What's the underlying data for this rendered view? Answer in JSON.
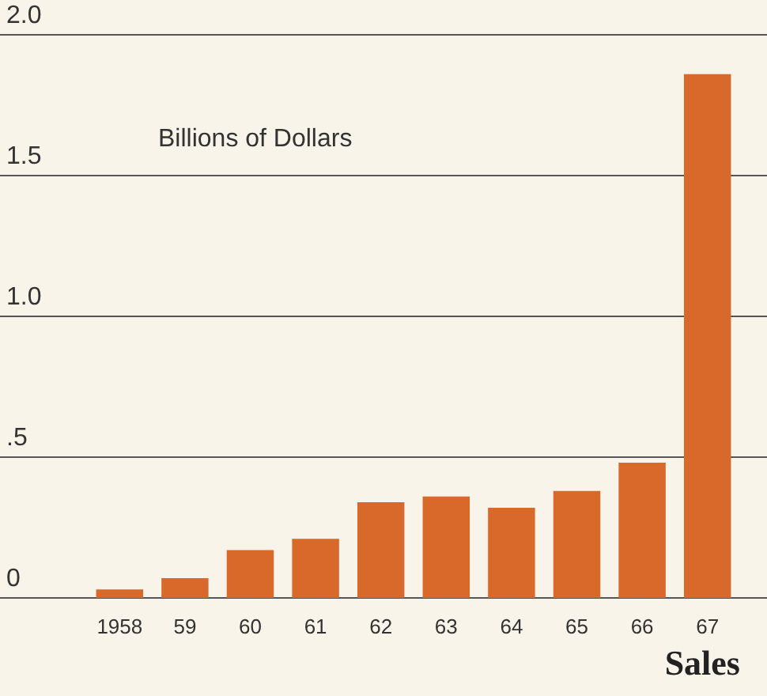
{
  "chart_data": {
    "type": "bar",
    "title": "Sales",
    "annotations": [
      "Billions of Dollars"
    ],
    "categories": [
      "1958",
      "59",
      "60",
      "61",
      "62",
      "63",
      "64",
      "65",
      "66",
      "67"
    ],
    "values": [
      0.03,
      0.07,
      0.17,
      0.21,
      0.34,
      0.36,
      0.32,
      0.38,
      0.48,
      1.86
    ],
    "color": "#d9692a",
    "ylim": [
      0,
      2
    ],
    "yticks": [
      {
        "value": 0,
        "label": "0"
      },
      {
        "value": 0.5,
        "label": ".5"
      },
      {
        "value": 1,
        "label": "1.0"
      },
      {
        "value": 1.5,
        "label": "1.5"
      },
      {
        "value": 2,
        "label": "2.0"
      }
    ],
    "grid": "y",
    "legend": false
  }
}
